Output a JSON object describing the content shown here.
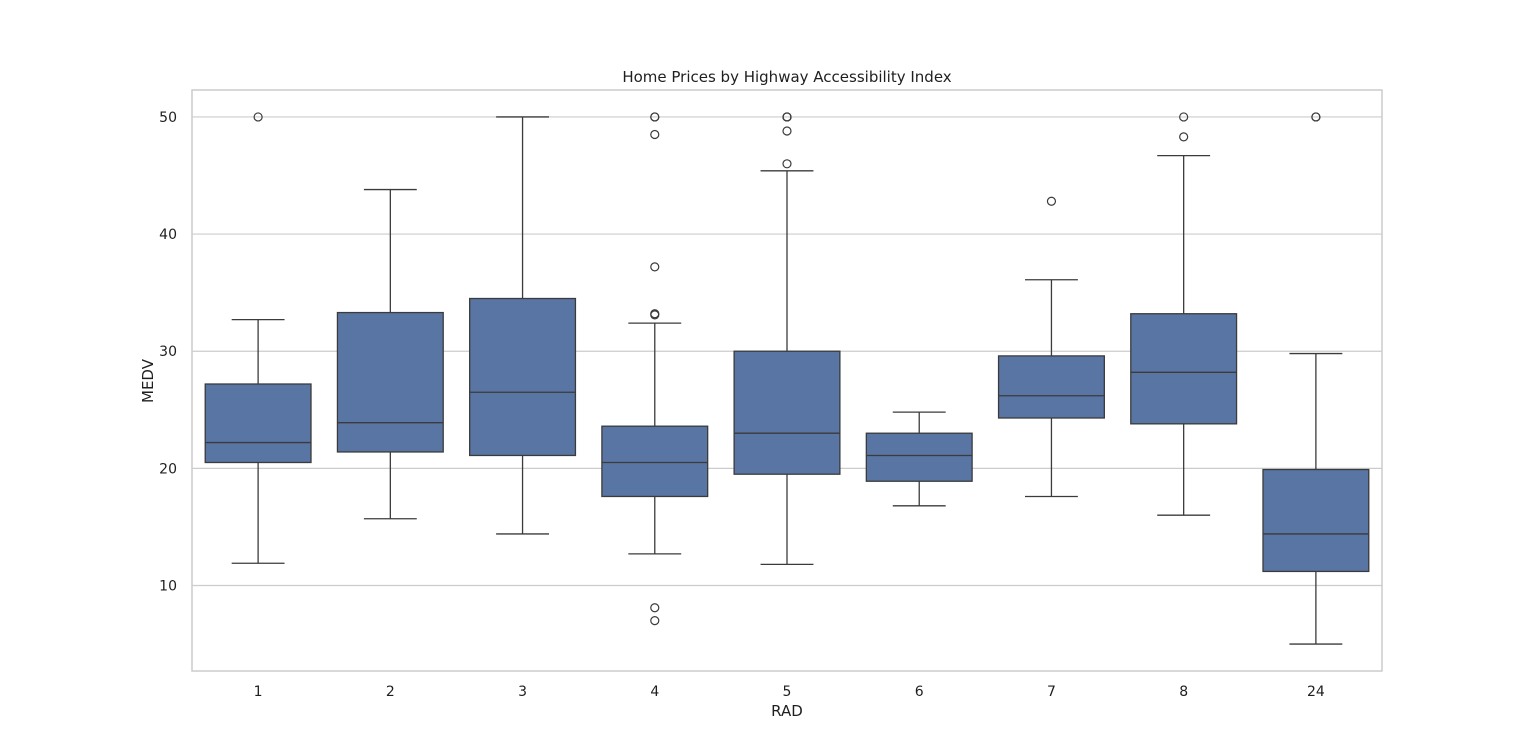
{
  "chart_data": {
    "type": "box",
    "title": "Home Prices by Highway Accessibility Index",
    "xlabel": "RAD",
    "ylabel": "MEDV",
    "ylim": [
      2.7,
      52.3
    ],
    "yticks": [
      10,
      20,
      30,
      40,
      50
    ],
    "ytick_labels": [
      "10",
      "20",
      "30",
      "40",
      "50"
    ],
    "grid": "horizontal",
    "box_color": "#5875a4",
    "edge_color": "#3b3b3b",
    "categories": [
      "1",
      "2",
      "3",
      "4",
      "5",
      "6",
      "7",
      "8",
      "24"
    ],
    "boxes": [
      {
        "category": "1",
        "whisker_low": 11.9,
        "q1": 20.5,
        "median": 22.2,
        "q3": 27.2,
        "whisker_high": 32.7,
        "outliers": [
          50.0
        ]
      },
      {
        "category": "2",
        "whisker_low": 15.7,
        "q1": 21.4,
        "median": 23.9,
        "q3": 33.3,
        "whisker_high": 43.8,
        "outliers": []
      },
      {
        "category": "3",
        "whisker_low": 14.4,
        "q1": 21.1,
        "median": 26.5,
        "q3": 34.5,
        "whisker_high": 50.0,
        "outliers": []
      },
      {
        "category": "4",
        "whisker_low": 12.7,
        "q1": 17.6,
        "median": 20.5,
        "q3": 23.6,
        "whisker_high": 32.4,
        "outliers": [
          50.0,
          50.0,
          48.5,
          37.2,
          33.2,
          33.1,
          8.1,
          7.0
        ]
      },
      {
        "category": "5",
        "whisker_low": 11.8,
        "q1": 19.5,
        "median": 23.0,
        "q3": 30.0,
        "whisker_high": 45.4,
        "outliers": [
          50.0,
          50.0,
          50.0,
          48.8,
          46.0
        ]
      },
      {
        "category": "6",
        "whisker_low": 16.8,
        "q1": 18.9,
        "median": 21.1,
        "q3": 23.0,
        "whisker_high": 24.8,
        "outliers": []
      },
      {
        "category": "7",
        "whisker_low": 17.6,
        "q1": 24.3,
        "median": 26.2,
        "q3": 29.6,
        "whisker_high": 36.1,
        "outliers": [
          42.8
        ]
      },
      {
        "category": "8",
        "whisker_low": 16.0,
        "q1": 23.8,
        "median": 28.2,
        "q3": 33.2,
        "whisker_high": 46.7,
        "outliers": [
          50.0,
          48.3
        ]
      },
      {
        "category": "24",
        "whisker_low": 5.0,
        "q1": 11.2,
        "median": 14.4,
        "q3": 19.9,
        "whisker_high": 29.8,
        "outliers": [
          50.0,
          50.0
        ]
      }
    ]
  }
}
